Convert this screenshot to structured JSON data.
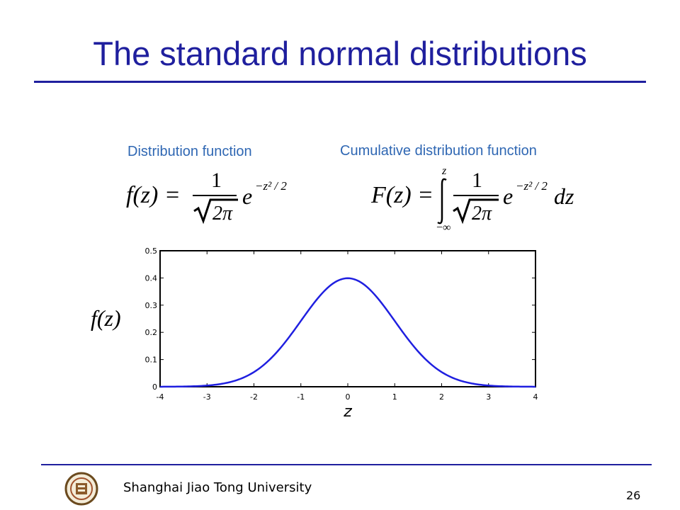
{
  "slide": {
    "title": "The standard normal distributions",
    "footer": "Shanghai Jiao Tong University",
    "page_number": "26"
  },
  "formulas": {
    "pdf_label": "Distribution function",
    "cdf_label": "Cumulative distribution function",
    "pdf_lhs": "f(z) =",
    "cdf_lhs": "F(z) =",
    "numerator": "1",
    "sqrt_arg": "2π",
    "exp_base": "e",
    "exp_power": "−z² / 2",
    "integral_upper": "z",
    "integral_lower": "−∞",
    "differential": "dz"
  },
  "chart_data": {
    "type": "line",
    "xlabel": "z",
    "ylabel": "f(z)",
    "xlim": [
      -4,
      4
    ],
    "ylim": [
      0,
      0.5
    ],
    "xticks": [
      "-4",
      "-3",
      "-2",
      "-1",
      "0",
      "1",
      "2",
      "3",
      "4"
    ],
    "yticks": [
      "0",
      "0.1",
      "0.2",
      "0.3",
      "0.4",
      "0.5"
    ],
    "grid": false,
    "color": "#1f1fe0",
    "x": [
      -4,
      -3.5,
      -3,
      -2.5,
      -2,
      -1.5,
      -1,
      -0.5,
      0,
      0.5,
      1,
      1.5,
      2,
      2.5,
      3,
      3.5,
      4
    ],
    "y": [
      0.0001,
      0.0009,
      0.0044,
      0.0175,
      0.054,
      0.1295,
      0.242,
      0.3521,
      0.3989,
      0.3521,
      0.242,
      0.1295,
      0.054,
      0.0175,
      0.0044,
      0.0009,
      0.0001
    ]
  }
}
